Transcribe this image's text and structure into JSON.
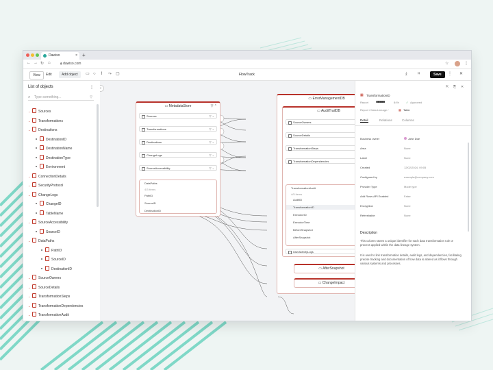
{
  "browser": {
    "tab_title": "Dawiso",
    "url": "dawiso.com"
  },
  "toolbar": {
    "view_label": "View",
    "edit_label": "Edit",
    "add_object_label": "Add object",
    "title": "FlowTrack",
    "save_label": "Save"
  },
  "sidebar": {
    "title": "List of objects",
    "search_placeholder": "Type something...",
    "items": [
      {
        "label": "Sources",
        "level": 0
      },
      {
        "label": "Transformations",
        "level": 0
      },
      {
        "label": "Destinations",
        "level": 0
      },
      {
        "label": "DestinationID",
        "level": 1
      },
      {
        "label": "DestinationName",
        "level": 1
      },
      {
        "label": "DestinationType",
        "level": 1
      },
      {
        "label": "Environment",
        "level": 1
      },
      {
        "label": "ConnectionDetails",
        "level": 0
      },
      {
        "label": "SecurityProtocol",
        "level": 0
      },
      {
        "label": "ChangeLogs",
        "level": 0
      },
      {
        "label": "ChangeID",
        "level": 1
      },
      {
        "label": "TableName",
        "level": 1
      },
      {
        "label": "SourceAccessibility",
        "level": 0
      },
      {
        "label": "SourceID",
        "level": 1
      },
      {
        "label": "DataPaths",
        "level": 0
      },
      {
        "label": "PathID",
        "level": 2
      },
      {
        "label": "SourceID",
        "level": 2
      },
      {
        "label": "DestinationID",
        "level": 2
      },
      {
        "label": "SourceOwners",
        "level": 0
      },
      {
        "label": "SourceDetails",
        "level": 0
      },
      {
        "label": "TransformationSteps",
        "level": 0
      },
      {
        "label": "TransformationDependencies",
        "level": 0
      },
      {
        "label": "TransformationAudit",
        "level": 0
      }
    ]
  },
  "canvas": {
    "metadata_store": {
      "title": "MetadataStore",
      "rows": [
        "Sources",
        "Transformations",
        "Destinations",
        "ChangeLogs",
        "SourceAccessibility"
      ],
      "datapaths": {
        "title": "DataPaths",
        "count": "4/3 items",
        "items": [
          "PathID",
          "SourceID",
          "DestinationID"
        ]
      }
    },
    "error_db": {
      "title": "ErrorManagementDB",
      "audit_db": "AuditTrailDB",
      "rows": [
        "SourceOwners",
        "SourceDetails",
        "TransformationSteps",
        "TransformationDependencies"
      ],
      "audit": {
        "title": "TransformationAudit",
        "count": "4/5 items",
        "items": [
          "AuditID",
          "TransformationID",
          "ExecutorID",
          "ExecutorTime",
          "BeforeSnapshot",
          "AfterSnapshot"
        ]
      },
      "user_logs": "UserActivityLogs"
    },
    "after_snapshot": "AfterSnapshot",
    "change_impact": "ChangeImpact"
  },
  "detail": {
    "title": "TransformationID",
    "report_label": "Report",
    "score": "84%",
    "status": "Approved",
    "breadcrumb": "Report / Data Lineage /",
    "type": "Table",
    "tabs": [
      "Detail",
      "Relations",
      "Columns"
    ],
    "properties": [
      {
        "key": "Business owner",
        "value": "John Doe"
      },
      {
        "key": "Area",
        "value": "None"
      },
      {
        "key": "Label",
        "value": "None"
      },
      {
        "key": "Created",
        "value": "12/02/2024, 09:05"
      },
      {
        "key": "Configured by",
        "value": "example@company.com"
      },
      {
        "key": "Provider Type",
        "value": "Mode type"
      },
      {
        "key": "Add Rows API Enabled",
        "value": "False"
      },
      {
        "key": "Encryption",
        "value": "None"
      },
      {
        "key": "Refreshable",
        "value": "None"
      }
    ],
    "description_title": "Description",
    "description_1": "This column stores a unique identifier for each data transformation rule or process applied within the data lineage system.",
    "description_2": "It is used to link transformation details, audit logs, and dependencies, facilitating precise tracking and documentation of how data is altered as it flows through various systems and processes."
  }
}
